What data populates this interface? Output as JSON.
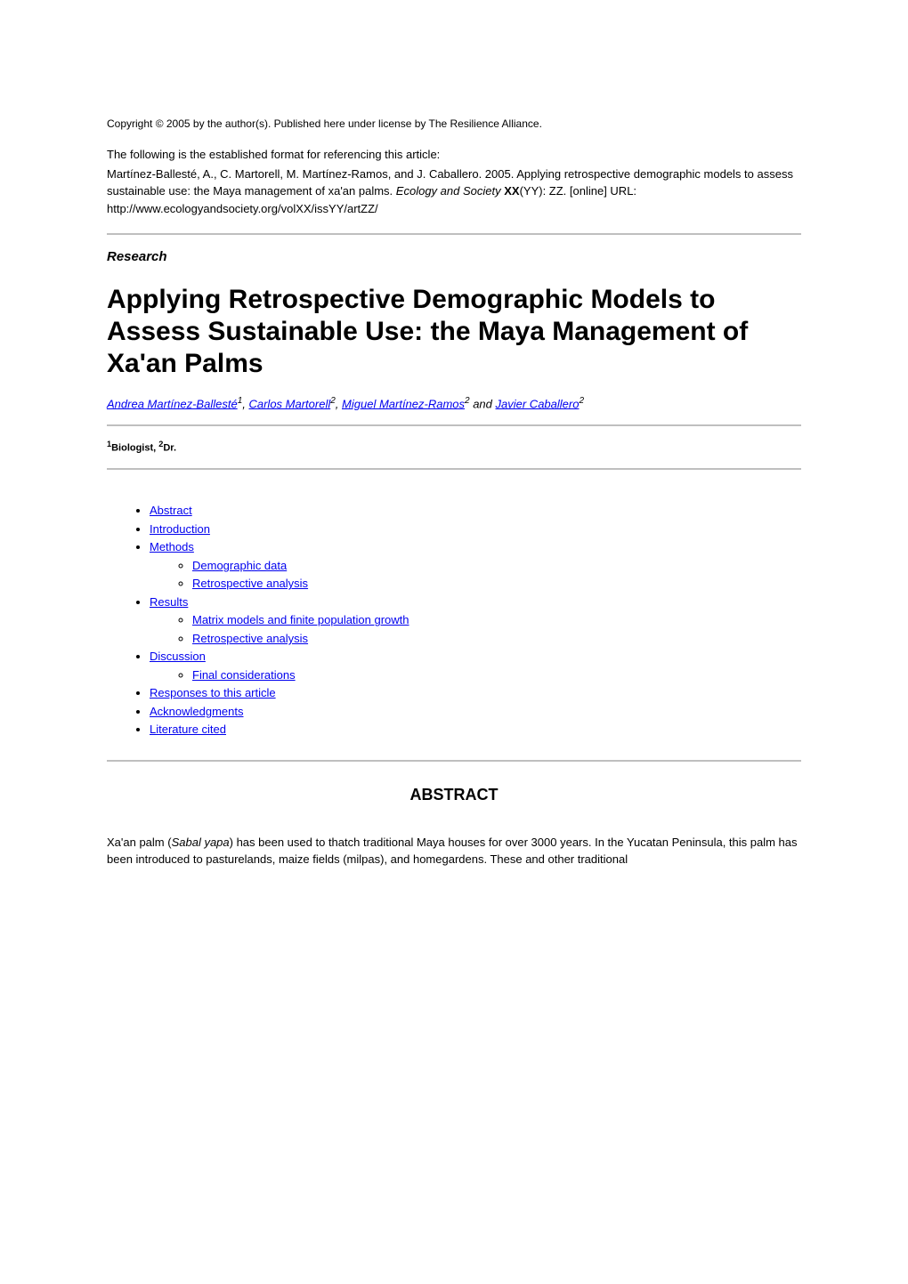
{
  "copyright": "Copyright © 2005 by the author(s). Published here under license by The Resilience Alliance.",
  "citation_intro": "The following is the established format for referencing this article:",
  "citation": {
    "authors": "Martínez-Ballesté, A., C. Martorell, M. Martínez-Ramos, and J. Caballero. 2005.",
    "title": "Applying retrospective demographic models to assess sustainable use: the Maya management of xa'an palms.",
    "journal": "Ecology and Society",
    "volume": "XX",
    "issue_pages": "(YY): ZZ. [online] URL:",
    "url": "http://www.ecologyandsociety.org/volXX/issYY/artZZ/"
  },
  "article_type": "Research",
  "title": "Applying Retrospective Demographic Models to Assess Sustainable Use: the Maya Management of Xa'an Palms",
  "authors": [
    {
      "name": "Andrea Martínez-Ballesté",
      "affil": "1"
    },
    {
      "name": "Carlos Martorell",
      "affil": "2"
    },
    {
      "name": "Miguel Martínez-Ramos",
      "affil": "2"
    },
    {
      "name": "Javier Caballero",
      "affil": "2"
    }
  ],
  "author_separator": ", ",
  "author_and": " and ",
  "affiliations": {
    "a1_sup": "1",
    "a1_text": "Biologist, ",
    "a2_sup": "2",
    "a2_text": "Dr."
  },
  "toc": {
    "items": [
      {
        "label": "Abstract",
        "children": []
      },
      {
        "label": "Introduction",
        "children": []
      },
      {
        "label": "Methods",
        "children": [
          {
            "label": "Demographic data"
          },
          {
            "label": "Retrospective analysis"
          }
        ]
      },
      {
        "label": "Results",
        "children": [
          {
            "label": "Matrix models and finite population growth"
          },
          {
            "label": "Retrospective analysis"
          }
        ]
      },
      {
        "label": "Discussion",
        "children": [
          {
            "label": "Final considerations"
          }
        ]
      },
      {
        "label": "Responses to this article",
        "children": []
      },
      {
        "label": "Acknowledgments",
        "children": []
      },
      {
        "label": "Literature cited",
        "children": []
      }
    ]
  },
  "abstract_heading": "ABSTRACT",
  "abstract": {
    "prefix": "Xa'an palm (",
    "species": "Sabal yapa",
    "rest": ") has been used to thatch traditional Maya houses for over 3000 years. In the Yucatan Peninsula, this palm has been introduced to pasturelands, maize fields (milpas), and homegardens. These and other traditional"
  },
  "colors": {
    "link": "#0000ee",
    "text": "#000000",
    "hr": "#bfbfbf",
    "background": "#ffffff"
  }
}
